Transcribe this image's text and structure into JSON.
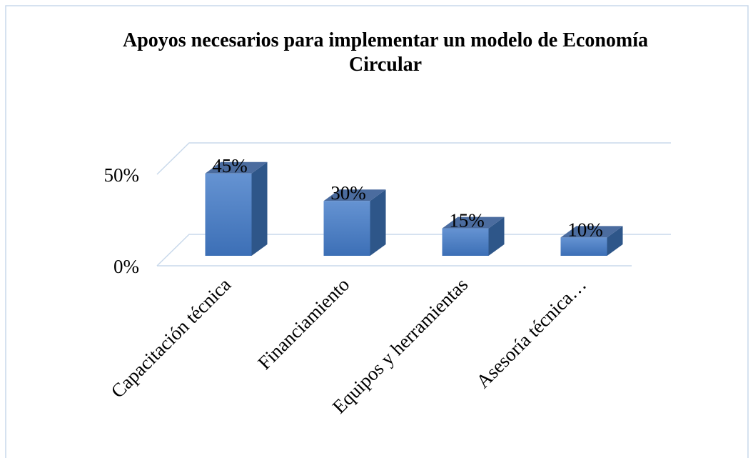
{
  "chart_data": {
    "type": "bar3d",
    "title": "Apoyos necesarios para implementar un modelo de Economía Circular",
    "categories": [
      "Capacitación técnica",
      "Financiamiento",
      "Equipos y herramientas",
      "Asesoría técnica…"
    ],
    "values": [
      45,
      30,
      15,
      10
    ],
    "value_labels": [
      "45%",
      "30%",
      "15%",
      "10%"
    ],
    "color": "#4f80c4",
    "ylim": [
      0,
      50
    ],
    "yticks": [
      {
        "value": 0,
        "label": "0%"
      },
      {
        "value": 50,
        "label": "50%"
      }
    ],
    "grid": true
  }
}
